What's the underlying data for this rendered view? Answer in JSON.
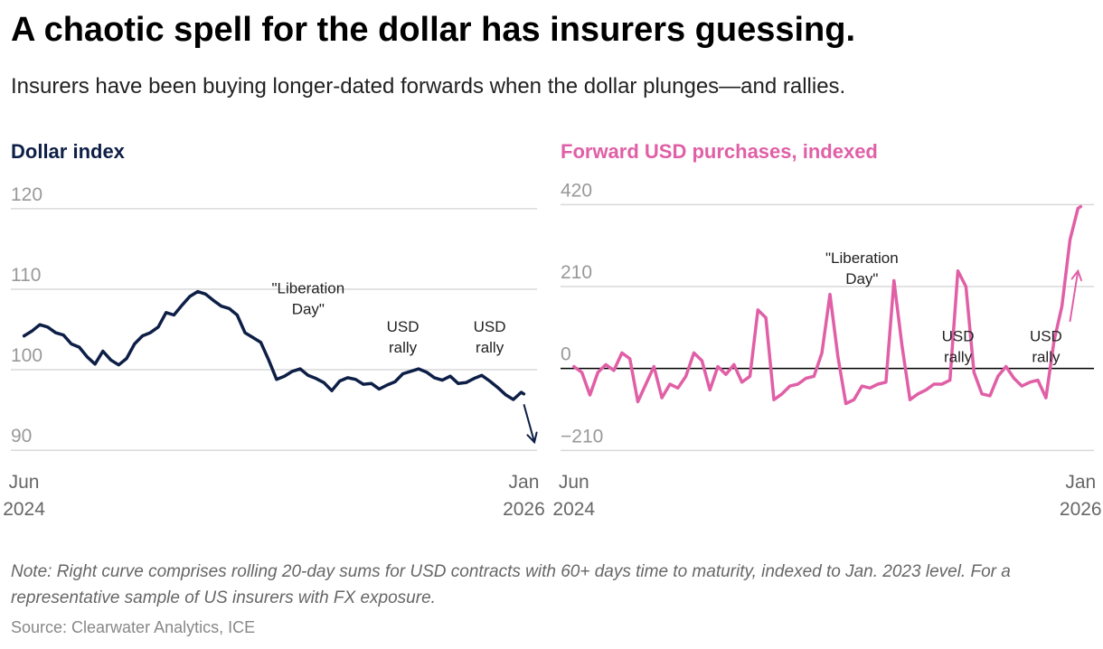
{
  "title": "A chaotic spell for the dollar has insurers guessing.",
  "subtitle": "Insurers have been buying longer-dated forwards when the dollar plunges—and rallies.",
  "note": "Note: Right curve comprises rolling 20-day sums for USD contracts with 60+ days time to maturity, indexed to Jan. 2023 level. For a representative sample of US insurers with FX exposure.",
  "source": "Source: Clearwater Analytics, ICE",
  "colors": {
    "navy": "#0e1f47",
    "pink": "#e05fa6",
    "grid": "#d9d9d9",
    "tick": "#999999",
    "annotation": "#222222"
  },
  "chart_data": [
    {
      "type": "line",
      "title": "Dollar index",
      "x_unit": "months since Jun 2024",
      "xlim": [
        -0.5,
        19.5
      ],
      "ylim": [
        89,
        121
      ],
      "ticks_y": [
        {
          "value": 120,
          "label": "120"
        },
        {
          "value": 110,
          "label": "110"
        },
        {
          "value": 100,
          "label": "100"
        },
        {
          "value": 90,
          "label": "90"
        }
      ],
      "ticks_x": [
        {
          "value": 0,
          "line1": "Jun",
          "line2": "2024"
        },
        {
          "value": 19,
          "line1": "Jan",
          "line2": "2026"
        }
      ],
      "series": [
        {
          "name": "Dollar index",
          "x": [
            0,
            0.3,
            0.6,
            0.9,
            1.2,
            1.5,
            1.8,
            2.1,
            2.4,
            2.7,
            3.0,
            3.3,
            3.6,
            3.9,
            4.2,
            4.5,
            4.8,
            5.1,
            5.4,
            5.7,
            6.0,
            6.3,
            6.6,
            6.9,
            7.2,
            7.5,
            7.8,
            8.1,
            8.4,
            8.7,
            9.0,
            9.3,
            9.6,
            9.9,
            10.2,
            10.5,
            10.8,
            11.1,
            11.4,
            11.7,
            12.0,
            12.3,
            12.6,
            12.9,
            13.2,
            13.5,
            13.8,
            14.1,
            14.4,
            14.7,
            15.0,
            15.3,
            15.6,
            15.9,
            16.2,
            16.5,
            16.8,
            17.1,
            17.4,
            17.7,
            18.0,
            18.3,
            18.6,
            18.9,
            19.0
          ],
          "values": [
            104.2,
            104.8,
            105.6,
            105.3,
            104.6,
            104.3,
            103.2,
            102.8,
            101.6,
            100.7,
            102.3,
            101.2,
            100.6,
            101.4,
            103.2,
            104.2,
            104.6,
            105.3,
            107.1,
            106.8,
            108.0,
            109.1,
            109.7,
            109.4,
            108.6,
            107.9,
            107.6,
            106.8,
            104.6,
            104.0,
            103.4,
            101.2,
            98.8,
            99.2,
            99.8,
            100.1,
            99.3,
            98.9,
            98.4,
            97.4,
            98.6,
            99.0,
            98.8,
            98.2,
            98.3,
            97.6,
            98.1,
            98.5,
            99.5,
            99.8,
            100.1,
            99.7,
            99.0,
            98.7,
            99.2,
            98.3,
            98.4,
            98.9,
            99.3,
            98.6,
            97.8,
            96.9,
            96.3,
            97.2,
            97.0
          ]
        }
      ],
      "annotations": [
        {
          "text": [
            "\"Liberation",
            "Day\""
          ],
          "x": 10.8,
          "y": 109.5
        },
        {
          "text": [
            "USD",
            "rally"
          ],
          "x": 14.4,
          "y": 104.7
        },
        {
          "text": [
            "USD",
            "rally"
          ],
          "x": 17.7,
          "y": 104.7
        }
      ],
      "arrow": {
        "from": [
          19.0,
          95.7
        ],
        "to": [
          19.4,
          91.0
        ],
        "direction": "down"
      }
    },
    {
      "type": "line",
      "title": "Forward USD purchases, indexed",
      "x_unit": "months since Jun 2024",
      "xlim": [
        -0.5,
        19.5
      ],
      "ylim": [
        -230,
        430
      ],
      "zero_line": true,
      "ticks_y": [
        {
          "value": 420,
          "label": "420"
        },
        {
          "value": 210,
          "label": "210"
        },
        {
          "value": 0,
          "label": "0"
        },
        {
          "value": -210,
          "label": "−210"
        }
      ],
      "ticks_x": [
        {
          "value": 0,
          "line1": "Jun",
          "line2": "2024"
        },
        {
          "value": 19,
          "line1": "Jan",
          "line2": "2026"
        }
      ],
      "series": [
        {
          "name": "Forward USD purchases",
          "x": [
            0,
            0.3,
            0.6,
            0.9,
            1.2,
            1.5,
            1.8,
            2.1,
            2.4,
            2.7,
            3.0,
            3.3,
            3.6,
            3.9,
            4.2,
            4.5,
            4.8,
            5.1,
            5.4,
            5.7,
            6.0,
            6.3,
            6.6,
            6.9,
            7.2,
            7.5,
            7.8,
            8.1,
            8.4,
            8.7,
            9.0,
            9.3,
            9.6,
            9.9,
            10.2,
            10.5,
            10.8,
            11.1,
            11.4,
            11.7,
            12.0,
            12.3,
            12.6,
            12.9,
            13.2,
            13.5,
            13.8,
            14.1,
            14.4,
            14.7,
            15.0,
            15.3,
            15.6,
            15.9,
            16.2,
            16.5,
            16.8,
            17.1,
            17.4,
            17.7,
            18.0,
            18.3,
            18.6,
            18.9,
            19.0
          ],
          "values": [
            5,
            -10,
            -68,
            -10,
            10,
            -5,
            40,
            25,
            -85,
            -40,
            5,
            -75,
            -40,
            -50,
            -20,
            40,
            20,
            -55,
            5,
            -15,
            10,
            -35,
            -20,
            150,
            130,
            -80,
            -65,
            -45,
            -40,
            -25,
            -20,
            40,
            190,
            30,
            -90,
            -80,
            -45,
            -50,
            -40,
            -35,
            225,
            60,
            -80,
            -65,
            -55,
            -40,
            -40,
            -30,
            250,
            210,
            -10,
            -65,
            -70,
            -20,
            5,
            -25,
            -45,
            -35,
            -30,
            -75,
            70,
            160,
            330,
            410,
            415
          ]
        }
      ],
      "annotations": [
        {
          "text": [
            "\"Liberation",
            "Day\""
          ],
          "x": 10.8,
          "y": 270
        },
        {
          "text": [
            "USD",
            "rally"
          ],
          "x": 14.4,
          "y": 70
        },
        {
          "text": [
            "USD",
            "rally"
          ],
          "x": 17.7,
          "y": 70
        }
      ],
      "arrow": {
        "from": [
          18.6,
          120
        ],
        "to": [
          18.9,
          250
        ],
        "direction": "up"
      }
    }
  ]
}
